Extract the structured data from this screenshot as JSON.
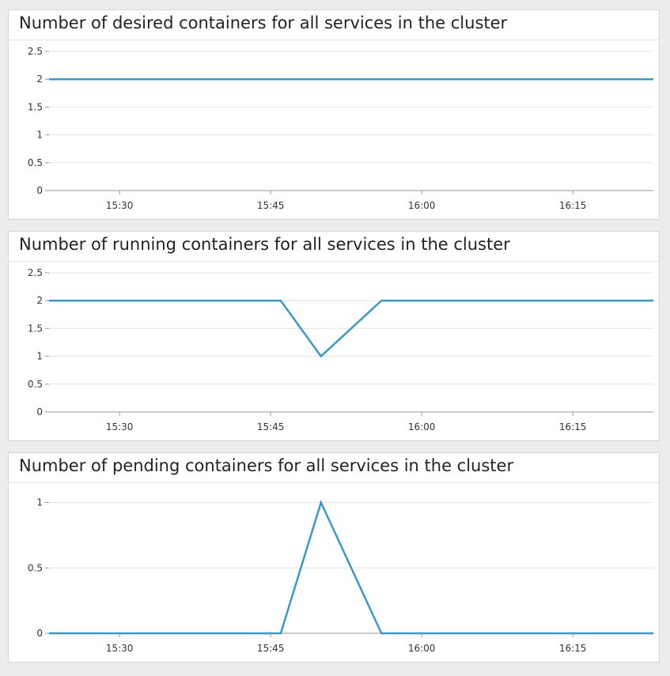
{
  "colors": {
    "series": "#3d98c2",
    "grid": "#e4e4e4",
    "axis": "#9a9a9a",
    "text": "#333333"
  },
  "chart_data": [
    {
      "type": "line",
      "title": "Number of desired containers for all services in the cluster",
      "x_ticks": [
        "15:30",
        "15:45",
        "16:00",
        "16:15"
      ],
      "x_range": [
        "15:23",
        "16:23"
      ],
      "ylim": [
        0,
        2.5
      ],
      "y_ticks": [
        0,
        0.5,
        1,
        1.5,
        2,
        2.5
      ],
      "y_tick_labels": [
        "0",
        "0.5",
        "1",
        "1.5",
        "2",
        "2.5"
      ],
      "grid": true,
      "series": [
        {
          "x": [
            "15:23",
            "16:23"
          ],
          "y": [
            2,
            2
          ]
        }
      ]
    },
    {
      "type": "line",
      "title": "Number of running containers for all services in the cluster",
      "x_ticks": [
        "15:30",
        "15:45",
        "16:00",
        "16:15"
      ],
      "x_range": [
        "15:23",
        "16:23"
      ],
      "ylim": [
        0,
        2.5
      ],
      "y_ticks": [
        0,
        0.5,
        1,
        1.5,
        2,
        2.5
      ],
      "y_tick_labels": [
        "0",
        "0.5",
        "1",
        "1.5",
        "2",
        "2.5"
      ],
      "grid": true,
      "series": [
        {
          "x": [
            "15:23",
            "15:46",
            "15:50",
            "15:56",
            "16:23"
          ],
          "y": [
            2,
            2,
            1,
            2,
            2
          ]
        }
      ]
    },
    {
      "type": "line",
      "title": "Number of pending containers for all services in the cluster",
      "x_ticks": [
        "15:30",
        "15:45",
        "16:00",
        "16:15"
      ],
      "x_range": [
        "15:23",
        "16:23"
      ],
      "ylim": [
        0,
        1.1
      ],
      "y_ticks": [
        0,
        0.5,
        1
      ],
      "y_tick_labels": [
        "0",
        "0.5",
        "1"
      ],
      "grid": true,
      "series": [
        {
          "x": [
            "15:23",
            "15:46",
            "15:50",
            "15:56",
            "16:23"
          ],
          "y": [
            0,
            0,
            1,
            0,
            0
          ]
        }
      ]
    }
  ]
}
